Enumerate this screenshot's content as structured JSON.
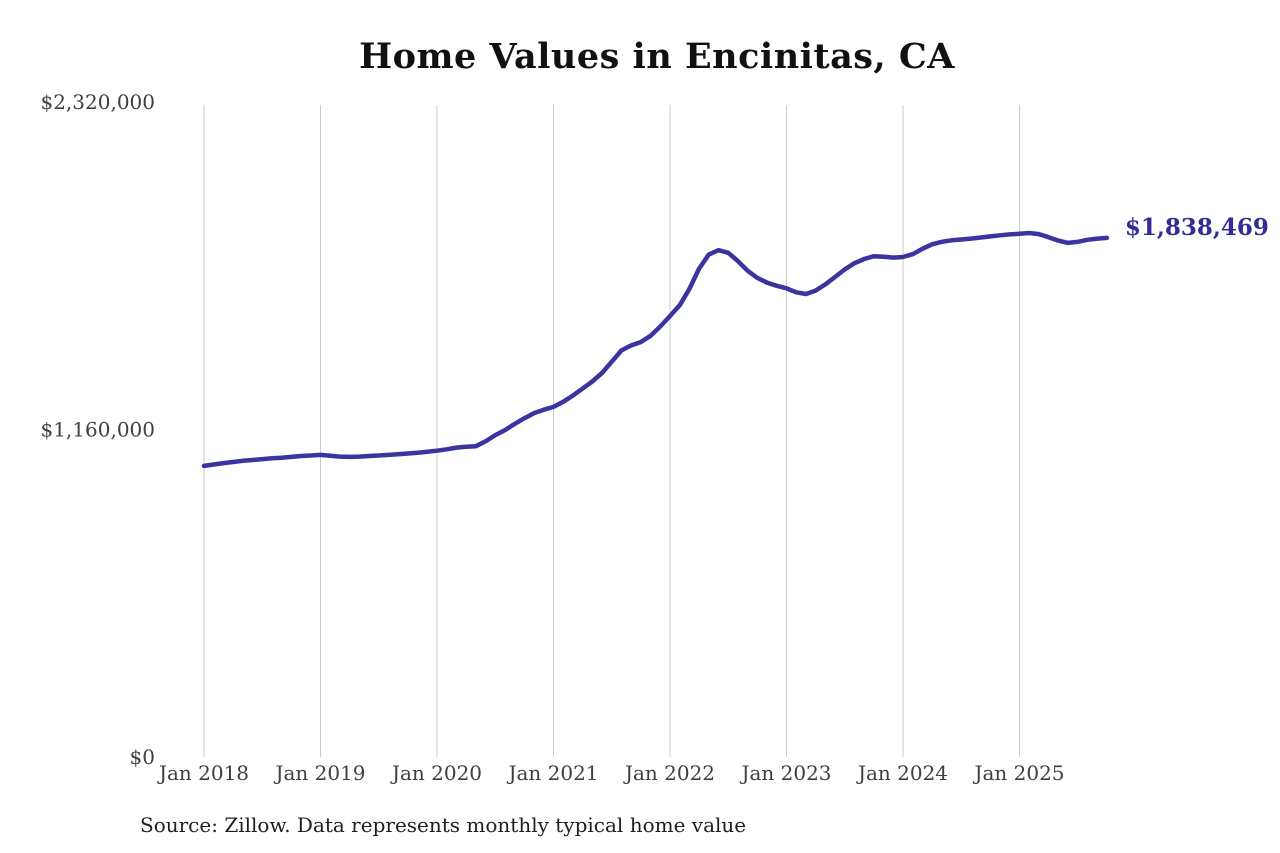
{
  "page": {
    "background": "#ffffff"
  },
  "source_note": "Source: Zillow. Data represents monthly typical home value",
  "chart_data": {
    "type": "line",
    "title": "Home Values in Encinitas, CA",
    "series_name": "Monthly typical home value",
    "frequency": "monthly",
    "ylim": [
      0,
      2320000
    ],
    "grid": "vertical-only",
    "legend": "none",
    "latest_value": 1838469,
    "latest_value_label": "$1,838,469",
    "line_color": "#3a34a0",
    "annotation_color": "#312c96",
    "gridline_color": "#cbcbcb",
    "axis_label_color": "#3f3f3f",
    "title_color": "#111111",
    "y_ticks": [
      {
        "value": 0,
        "label": "$0"
      },
      {
        "value": 1160000,
        "label": "$1,160,000"
      },
      {
        "value": 2320000,
        "label": "$2,320,000"
      }
    ],
    "x_ticks": [
      {
        "month": "2018-01",
        "label": "Jan 2018"
      },
      {
        "month": "2019-01",
        "label": "Jan 2019"
      },
      {
        "month": "2020-01",
        "label": "Jan 2020"
      },
      {
        "month": "2021-01",
        "label": "Jan 2021"
      },
      {
        "month": "2022-01",
        "label": "Jan 2022"
      },
      {
        "month": "2023-01",
        "label": "Jan 2023"
      },
      {
        "month": "2024-01",
        "label": "Jan 2024"
      },
      {
        "month": "2025-01",
        "label": "Jan 2025"
      }
    ],
    "months": [
      "2018-01",
      "2018-02",
      "2018-03",
      "2018-04",
      "2018-05",
      "2018-06",
      "2018-07",
      "2018-08",
      "2018-09",
      "2018-10",
      "2018-11",
      "2018-12",
      "2019-01",
      "2019-02",
      "2019-03",
      "2019-04",
      "2019-05",
      "2019-06",
      "2019-07",
      "2019-08",
      "2019-09",
      "2019-10",
      "2019-11",
      "2019-12",
      "2020-01",
      "2020-02",
      "2020-03",
      "2020-04",
      "2020-05",
      "2020-06",
      "2020-07",
      "2020-08",
      "2020-09",
      "2020-10",
      "2020-11",
      "2020-12",
      "2021-01",
      "2021-02",
      "2021-03",
      "2021-04",
      "2021-05",
      "2021-06",
      "2021-07",
      "2021-08",
      "2021-09",
      "2021-10",
      "2021-11",
      "2021-12",
      "2022-01",
      "2022-02",
      "2022-03",
      "2022-04",
      "2022-05",
      "2022-06",
      "2022-07",
      "2022-08",
      "2022-09",
      "2022-10",
      "2022-11",
      "2022-12",
      "2023-01",
      "2023-02",
      "2023-03",
      "2023-04",
      "2023-05",
      "2023-06",
      "2023-07",
      "2023-08",
      "2023-09",
      "2023-10",
      "2023-11",
      "2023-12",
      "2024-01",
      "2024-02",
      "2024-03",
      "2024-04",
      "2024-05",
      "2024-06",
      "2024-07",
      "2024-08",
      "2024-09",
      "2024-10",
      "2024-11",
      "2024-12",
      "2025-01",
      "2025-02",
      "2025-03",
      "2025-04",
      "2025-05",
      "2025-06",
      "2025-07",
      "2025-08",
      "2025-09",
      "2025-10"
    ],
    "values": [
      1031000,
      1036000,
      1041000,
      1045000,
      1049000,
      1052000,
      1055000,
      1058000,
      1060000,
      1063000,
      1066000,
      1068000,
      1070000,
      1067000,
      1064000,
      1063000,
      1064000,
      1066000,
      1068000,
      1070000,
      1072000,
      1075000,
      1078000,
      1081000,
      1085000,
      1090000,
      1096000,
      1099000,
      1101000,
      1118000,
      1140000,
      1158000,
      1180000,
      1200000,
      1218000,
      1230000,
      1240000,
      1258000,
      1280000,
      1305000,
      1330000,
      1360000,
      1400000,
      1440000,
      1458000,
      1470000,
      1492000,
      1525000,
      1562000,
      1600000,
      1658000,
      1730000,
      1780000,
      1795000,
      1786000,
      1756000,
      1722000,
      1697000,
      1680000,
      1669000,
      1660000,
      1646000,
      1640000,
      1652000,
      1674000,
      1700000,
      1727000,
      1749000,
      1764000,
      1774000,
      1772000,
      1769000,
      1771000,
      1781000,
      1800000,
      1816000,
      1825000,
      1830000,
      1833000,
      1836000,
      1840000,
      1844000,
      1848000,
      1851000,
      1853000,
      1856000,
      1852000,
      1841000,
      1829000,
      1821000,
      1825000,
      1832000,
      1836000,
      1838469
    ]
  }
}
